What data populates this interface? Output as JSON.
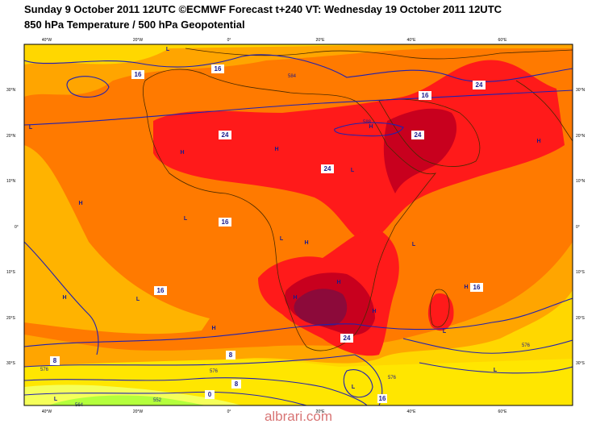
{
  "header": {
    "line1": "Sunday 9 October 2011 12UTC ©ECMWF Forecast t+240 VT: Wednesday 19 October 2011 12UTC",
    "line2": "850 hPa Temperature / 500 hPa Geopotential"
  },
  "watermark": "albrari.com",
  "axes": {
    "lon_labels": [
      "40°W",
      "20°W",
      "0°",
      "20°E",
      "40°E",
      "60°E"
    ],
    "lat_labels": [
      "30°N",
      "20°N",
      "10°N",
      "0°",
      "10°S",
      "20°S",
      "30°S"
    ]
  },
  "temperature_contours": [
    "16",
    "16",
    "24",
    "24",
    "24",
    "24",
    "16",
    "16",
    "16",
    "16",
    "24",
    "8",
    "8",
    "8",
    "0",
    "16"
  ],
  "geopotential_contours": [
    "584",
    "588",
    "576",
    "576",
    "564",
    "552",
    "576",
    "576"
  ],
  "pressure_centers": [
    "L",
    "L",
    "H",
    "H",
    "H",
    "L",
    "L",
    "H",
    "H",
    "H",
    "L",
    "H",
    "H",
    "L",
    "H",
    "L",
    "L",
    "L",
    "H",
    "H",
    "L",
    "L",
    "H"
  ],
  "colors": {
    "frame": "#000000",
    "yellow": "#ffd700",
    "light_orange": "#ffa500",
    "orange": "#ff7700",
    "red": "#ff1a1a",
    "dark_red": "#c8001e",
    "maroon": "#8c0a3a",
    "green": "#b4ff3c",
    "contour": "#2020b0"
  }
}
